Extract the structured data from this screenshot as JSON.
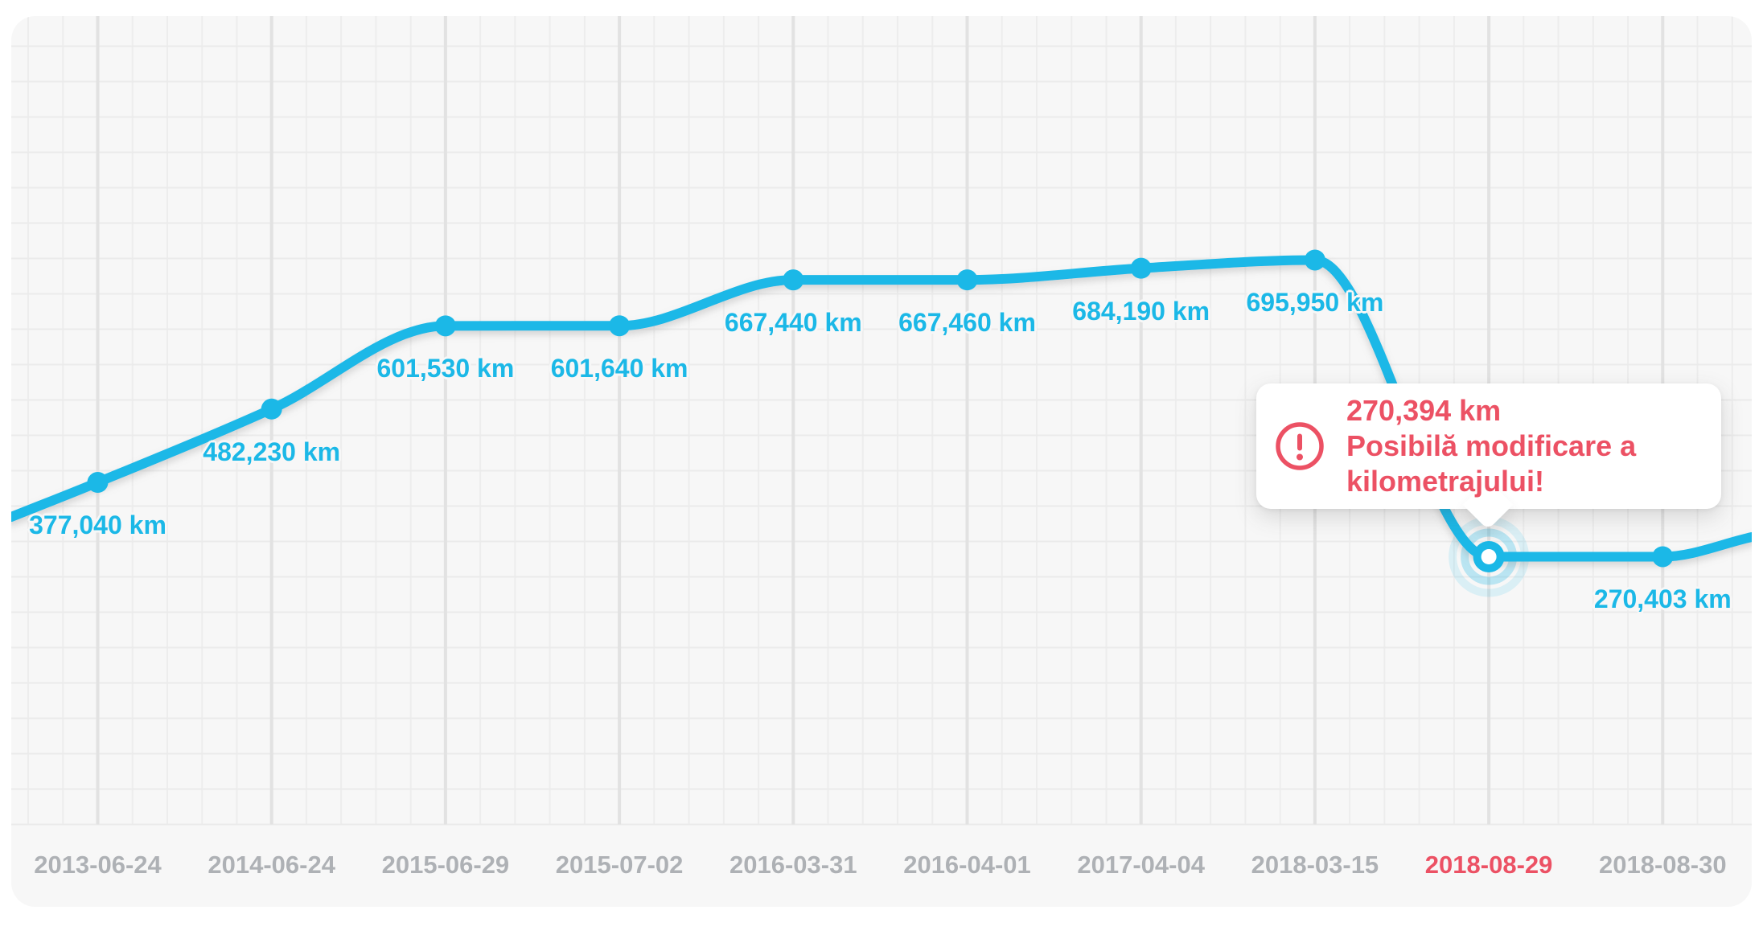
{
  "chart_data": {
    "type": "line",
    "series": [
      {
        "name": "odometer-km",
        "values": [
          377040,
          482230,
          601530,
          601640,
          667440,
          667460,
          684190,
          695950,
          270394,
          270403
        ]
      }
    ],
    "x_tick_labels": [
      "2013-06-24",
      "2014-06-24",
      "2015-06-29",
      "2015-07-02",
      "2016-03-31",
      "2016-04-01",
      "2017-04-04",
      "2018-03-15",
      "2018-08-29",
      "2018-08-30"
    ],
    "point_value_labels": [
      "377,040 km",
      "482,230 km",
      "601,530 km",
      "601,640 km",
      "667,440 km",
      "667,460 km",
      "684,190 km",
      "695,950 km",
      null,
      "270,403 km"
    ],
    "highlighted_index": 8,
    "highlighted_date": "2018-08-29",
    "grid": true,
    "legend": "none",
    "y_axis_labels_visible": false
  },
  "tooltip": {
    "value": "270,394 km",
    "message": "Posibilă modificare a kilometrajului!",
    "icon": "alert-exclamation-circle-icon"
  },
  "colors": {
    "line": "#1bb8e7",
    "value_label": "#1bb8e7",
    "date_label": "#aeb1b5",
    "alert": "#ec5164",
    "panel_bg": "#f7f7f7",
    "grid_minor": "#ededed",
    "grid_horizontal": "#ebebeb",
    "grid_major": "#e2e2e2",
    "tooltip_bg": "#ffffff",
    "highlight_dot_center": "#ffffff"
  }
}
